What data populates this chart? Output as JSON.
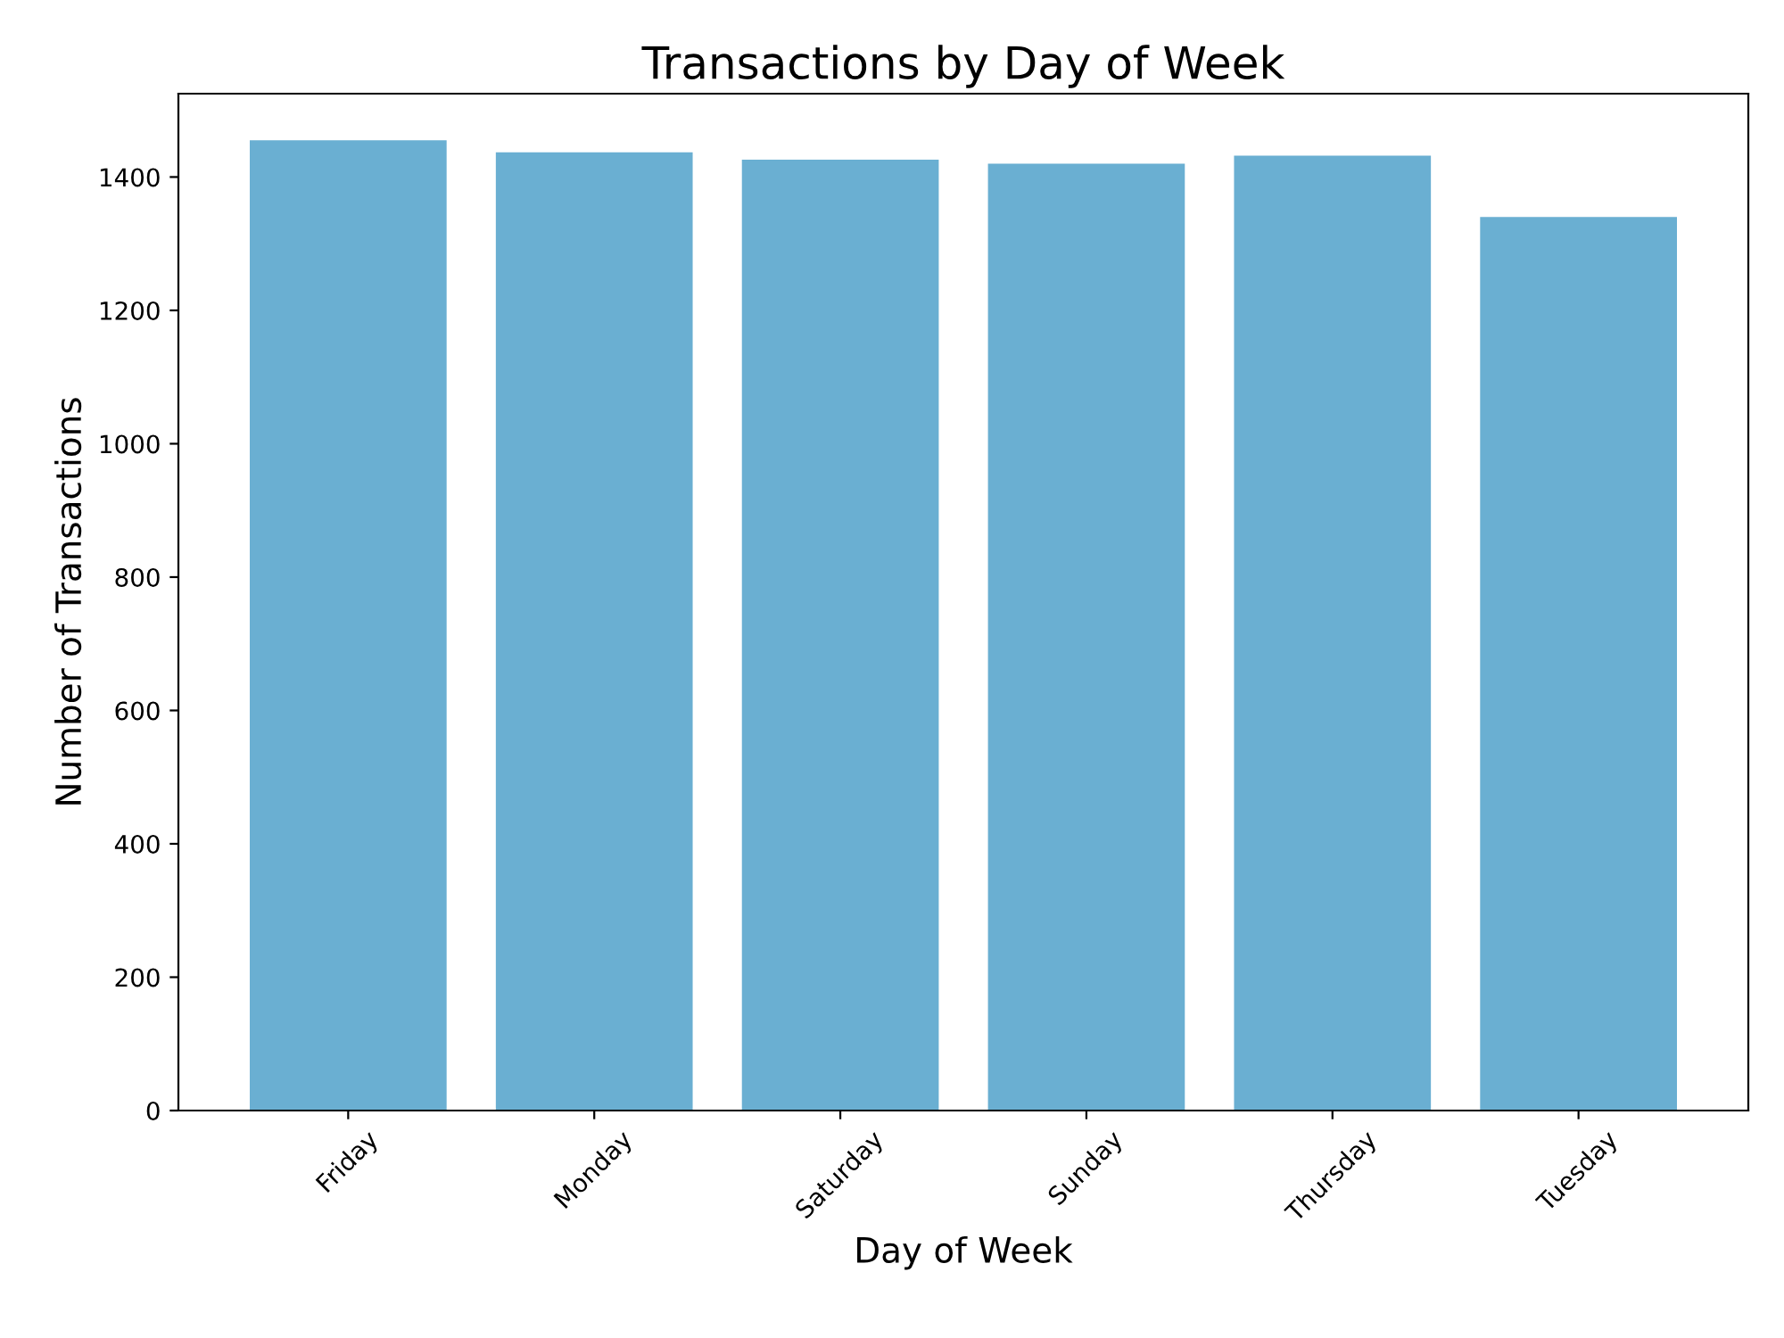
{
  "chart_data": {
    "type": "bar",
    "title": "Transactions by Day of Week",
    "xlabel": "Day of Week",
    "ylabel": "Number of Transactions",
    "categories": [
      "Friday",
      "Monday",
      "Saturday",
      "Sunday",
      "Thursday",
      "Tuesday"
    ],
    "values": [
      1455,
      1437,
      1426,
      1420,
      1432,
      1340
    ],
    "color": "#6aafd2",
    "ylim": [
      0,
      1525
    ],
    "yticks": [
      0,
      200,
      400,
      600,
      800,
      1000,
      1200,
      1400
    ],
    "grid": false
  }
}
